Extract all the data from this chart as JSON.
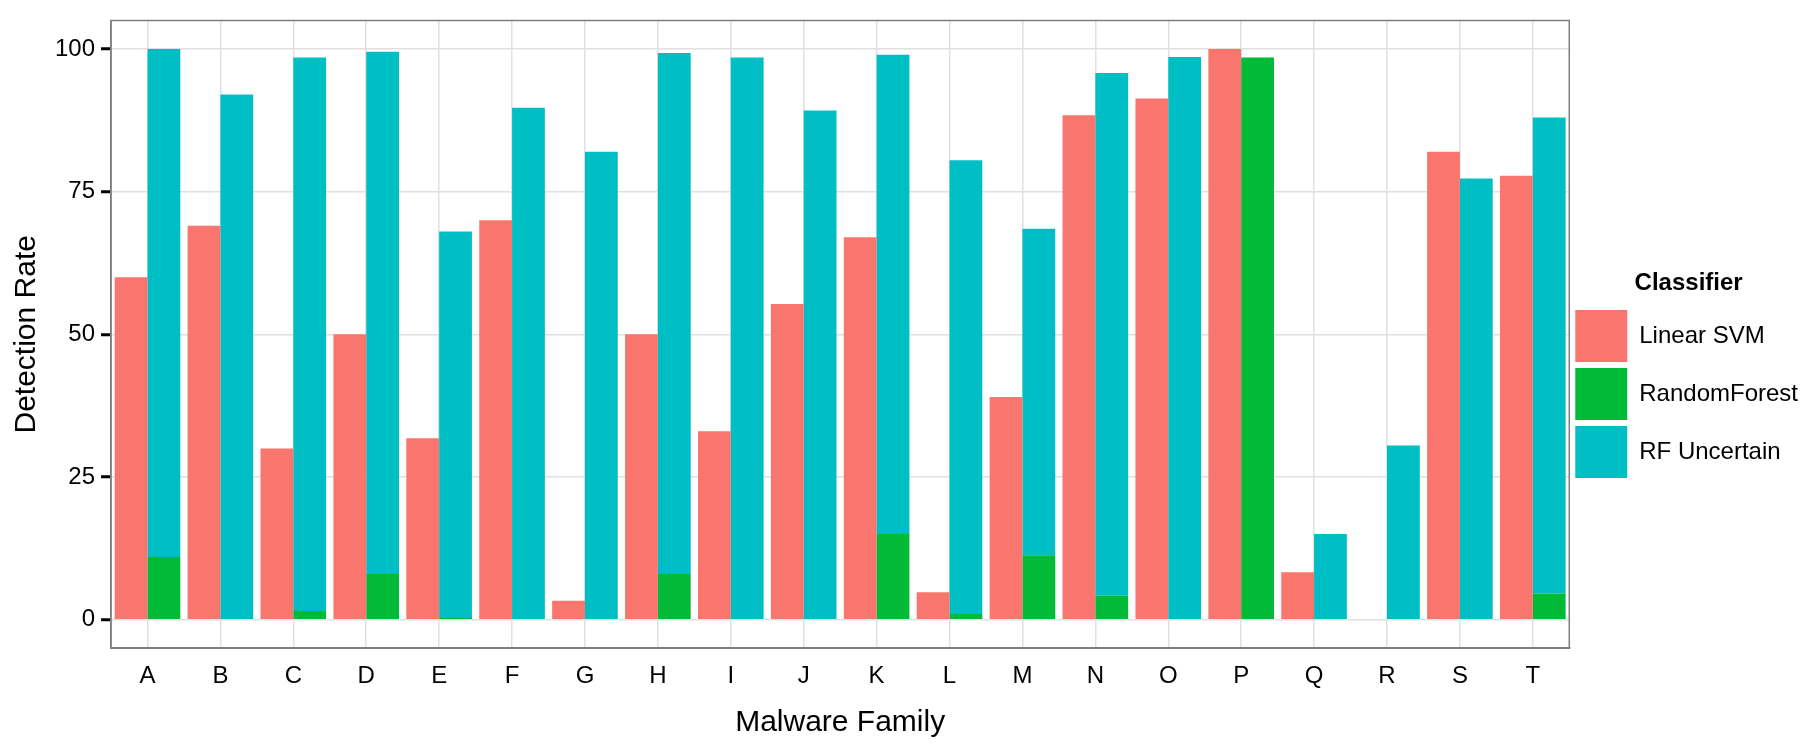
{
  "chart_data": {
    "type": "bar",
    "xlabel": "Malware Family",
    "ylabel": "Detection Rate",
    "legend_title": "Classifier",
    "legend": "right",
    "grid": true,
    "categories": [
      "A",
      "B",
      "C",
      "D",
      "E",
      "F",
      "G",
      "H",
      "I",
      "J",
      "K",
      "L",
      "M",
      "N",
      "O",
      "P",
      "Q",
      "R",
      "S",
      "T"
    ],
    "ylim": [
      -5,
      105
    ],
    "yticks": [
      0,
      25,
      50,
      75,
      100
    ],
    "series": [
      {
        "name": "Linear SVM",
        "color": "#f8766d",
        "values": [
          60,
          69,
          30,
          50,
          31.8,
          70,
          3.3,
          50,
          33,
          55.3,
          67,
          4.8,
          39,
          88.4,
          91.3,
          100,
          8.3,
          0,
          82,
          77.8
        ]
      },
      {
        "name": "RandomForest",
        "color": "#00ba38",
        "values": [
          11,
          0,
          1.5,
          8,
          0.3,
          0,
          0,
          8,
          0,
          0,
          15,
          1,
          11.3,
          4.2,
          0,
          98.5,
          0,
          0,
          0,
          4.6
        ]
      },
      {
        "name": "RF Uncertain",
        "color": "#00bfc4",
        "base": [
          11,
          0,
          1.5,
          8,
          0.3,
          0,
          0,
          8,
          0,
          0,
          15,
          1,
          11.3,
          4.2,
          0,
          null,
          0,
          0,
          0,
          4.6
        ],
        "values": [
          89,
          92,
          97,
          91.5,
          67.7,
          89.7,
          82,
          91.3,
          98.5,
          89.2,
          84,
          79.5,
          57.2,
          91.6,
          98.6,
          null,
          15,
          30.5,
          77.3,
          83.4
        ]
      }
    ]
  }
}
